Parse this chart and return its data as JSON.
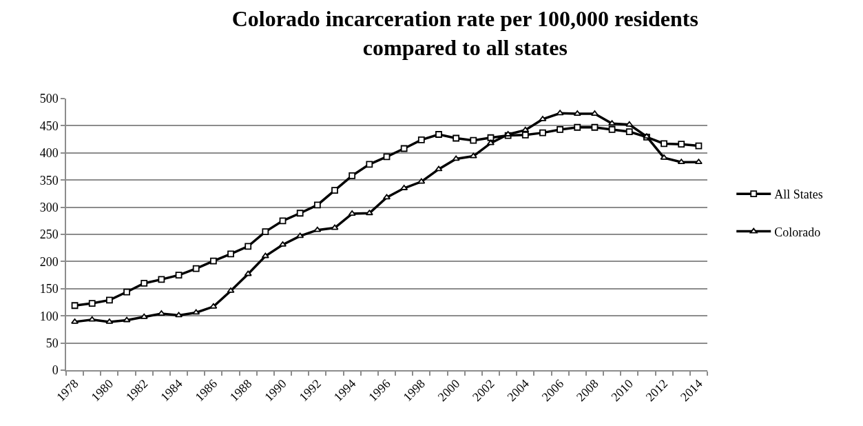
{
  "chart_data": {
    "type": "line",
    "title": "Colorado incarceration rate per 100,000 residents compared to all states",
    "categories": [
      "1978",
      null,
      "1980",
      null,
      "1982",
      null,
      "1984",
      null,
      "1986",
      null,
      "1988",
      null,
      "1990",
      null,
      "1992",
      null,
      "1994",
      null,
      "1996",
      null,
      "1998",
      null,
      "2000",
      null,
      "2002",
      null,
      "2004",
      null,
      "2006",
      null,
      "2008",
      null,
      "2010",
      null,
      "2012",
      null,
      "2014"
    ],
    "series": [
      {
        "name": "All States",
        "color": "#000000",
        "marker": "square",
        "values": [
          119,
          123,
          129,
          144,
          160,
          167,
          175,
          187,
          201,
          214,
          228,
          255,
          275,
          289,
          304,
          331,
          358,
          379,
          393,
          408,
          424,
          434,
          427,
          423,
          428,
          432,
          433,
          437,
          443,
          447,
          447,
          443,
          439,
          429,
          417,
          416,
          413
        ]
      },
      {
        "name": "Colorado",
        "color": "#000000",
        "marker": "triangle",
        "values": [
          89,
          93,
          89,
          92,
          98,
          104,
          101,
          106,
          117,
          146,
          177,
          210,
          231,
          247,
          258,
          262,
          288,
          289,
          318,
          335,
          347,
          370,
          389,
          394,
          418,
          434,
          442,
          462,
          473,
          472,
          472,
          454,
          452,
          430,
          391,
          383,
          383
        ]
      }
    ],
    "ylim": [
      0,
      500
    ],
    "yticks": [
      0,
      50,
      100,
      150,
      200,
      250,
      300,
      350,
      400,
      450,
      500
    ],
    "grid": "y",
    "legend": "right",
    "line_style": "solid"
  }
}
